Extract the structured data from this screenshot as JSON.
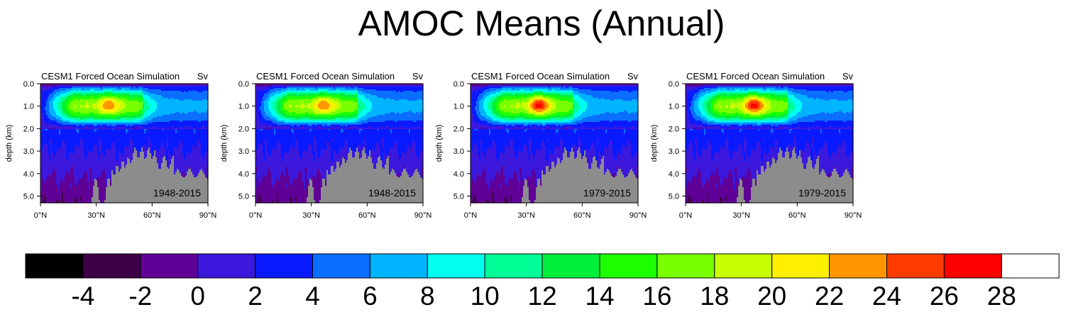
{
  "figure_title": "AMOC Means (Annual)",
  "colors": {
    "land": "#8c8c8c"
  },
  "chart_data": [
    {
      "type": "contour",
      "title": "CESM1 Forced Ocean Simulation",
      "units_label": "Sv",
      "period_label": "1948-2015",
      "ylabel": "depth (km)",
      "yticks": [
        "0.0",
        "1.0",
        "2.0",
        "3.0",
        "4.0",
        "5.0"
      ],
      "ylim": [
        0,
        5.3
      ],
      "xticks": [
        "0°N",
        "30°N",
        "60°N",
        "90°N"
      ],
      "xlim": [
        0,
        90
      ],
      "cell_max_sv": 23,
      "cell_center": {
        "lat": 37,
        "depth_km": 0.95
      }
    },
    {
      "type": "contour",
      "title": "CESM1 Forced Ocean Simulation",
      "units_label": "Sv",
      "period_label": "1948-2015",
      "ylabel": "depth (km)",
      "yticks": [
        "0.0",
        "1.0",
        "2.0",
        "3.0",
        "4.0",
        "5.0"
      ],
      "ylim": [
        0,
        5.3
      ],
      "xticks": [
        "0°N",
        "30°N",
        "60°N",
        "90°N"
      ],
      "xlim": [
        0,
        90
      ],
      "cell_max_sv": 23,
      "cell_center": {
        "lat": 37,
        "depth_km": 0.95
      }
    },
    {
      "type": "contour",
      "title": "CESM1 Forced Ocean Simulation",
      "units_label": "Sv",
      "period_label": "1979-2015",
      "ylabel": "depth (km)",
      "yticks": [
        "0.0",
        "1.0",
        "2.0",
        "3.0",
        "4.0",
        "5.0"
      ],
      "ylim": [
        0,
        5.3
      ],
      "xticks": [
        "0°N",
        "30°N",
        "60°N",
        "90°N"
      ],
      "xlim": [
        0,
        90
      ],
      "cell_max_sv": 26,
      "cell_center": {
        "lat": 37,
        "depth_km": 0.95
      }
    },
    {
      "type": "contour",
      "title": "CESM1 Forced Ocean Simulation",
      "units_label": "Sv",
      "period_label": "1979-2015",
      "ylabel": "depth (km)",
      "yticks": [
        "0.0",
        "1.0",
        "2.0",
        "3.0",
        "4.0",
        "5.0"
      ],
      "ylim": [
        0,
        5.3
      ],
      "xticks": [
        "0°N",
        "30°N",
        "60°N",
        "90°N"
      ],
      "xlim": [
        0,
        90
      ],
      "cell_max_sv": 26,
      "cell_center": {
        "lat": 37,
        "depth_km": 0.95
      }
    }
  ],
  "colorbar": {
    "levels": [
      -4,
      -2,
      0,
      2,
      4,
      6,
      8,
      10,
      12,
      14,
      16,
      18,
      20,
      22,
      24,
      26,
      28
    ],
    "labels": [
      "-4",
      "-2",
      "0",
      "2",
      "4",
      "6",
      "8",
      "10",
      "12",
      "14",
      "16",
      "18",
      "20",
      "22",
      "24",
      "26",
      "28"
    ],
    "colors": [
      "#000000",
      "#3d0046",
      "#5f0096",
      "#3c18dc",
      "#0a1aff",
      "#0a6eff",
      "#00b4ff",
      "#00fff0",
      "#00ff96",
      "#00ee3c",
      "#1cff00",
      "#78ff00",
      "#c8ff00",
      "#fff000",
      "#ff9600",
      "#ff3c00",
      "#ff0000",
      "#ffffff"
    ]
  }
}
